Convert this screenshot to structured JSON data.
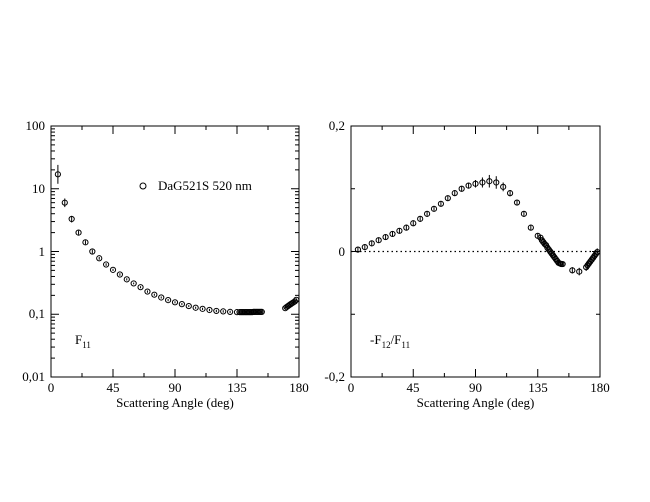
{
  "chart_data": [
    {
      "type": "scatter",
      "panel": "left",
      "xlabel": "Scattering Angle (deg)",
      "ylabel": "",
      "xlim": [
        0,
        180
      ],
      "ylim": [
        0.01,
        100
      ],
      "yscale": "log",
      "xticks": [
        "0",
        "45",
        "90",
        "135",
        "180"
      ],
      "yticks": [
        "0,01",
        "0,1",
        "1",
        "10",
        "100"
      ],
      "annotation": "F",
      "annotation_sub": "11",
      "legend": {
        "label": "DaG521S 520 nm",
        "placement": "top-right",
        "marker": "open-circle"
      },
      "series": [
        {
          "name": "DaG521S 520 nm",
          "x": [
            5,
            10,
            15,
            20,
            25,
            30,
            35,
            40,
            45,
            50,
            55,
            60,
            65,
            70,
            75,
            80,
            85,
            90,
            95,
            100,
            105,
            110,
            115,
            120,
            125,
            130,
            135,
            137,
            138,
            139,
            140,
            141,
            142,
            143,
            144,
            145,
            146,
            147,
            148,
            149,
            150,
            151,
            152,
            153,
            170,
            171,
            172,
            173,
            174,
            175,
            176,
            177,
            178
          ],
          "y": [
            17,
            6,
            3.3,
            2.0,
            1.4,
            1.0,
            0.78,
            0.62,
            0.51,
            0.43,
            0.36,
            0.31,
            0.27,
            0.23,
            0.205,
            0.185,
            0.168,
            0.155,
            0.145,
            0.135,
            0.127,
            0.122,
            0.117,
            0.113,
            0.111,
            0.109,
            0.108,
            0.108,
            0.108,
            0.108,
            0.108,
            0.108,
            0.108,
            0.108,
            0.108,
            0.108,
            0.108,
            0.109,
            0.109,
            0.109,
            0.109,
            0.109,
            0.109,
            0.109,
            0.125,
            0.13,
            0.135,
            0.14,
            0.145,
            0.15,
            0.155,
            0.16,
            0.17
          ],
          "yerr_hi": [
            24,
            7,
            3.7,
            2.15,
            1.5,
            1.07,
            0.82,
            0.65,
            0.53,
            0.45,
            0.375,
            0.32,
            0.28,
            0.24,
            0.213,
            0.192,
            0.175,
            0.161,
            0.151,
            0.14,
            0.132,
            0.127,
            0.122,
            0.118,
            0.116,
            0.114,
            0.113,
            0.113,
            0.113,
            0.113,
            0.113,
            0.113,
            0.113,
            0.113,
            0.113,
            0.113,
            0.113,
            0.114,
            0.114,
            0.114,
            0.114,
            0.114,
            0.114,
            0.114,
            0.13,
            0.136,
            0.142,
            0.147,
            0.152,
            0.158,
            0.163,
            0.168,
            0.18
          ],
          "yerr_lo": [
            12,
            5.1,
            2.9,
            1.85,
            1.3,
            0.93,
            0.74,
            0.59,
            0.49,
            0.41,
            0.345,
            0.3,
            0.26,
            0.22,
            0.197,
            0.178,
            0.161,
            0.149,
            0.139,
            0.13,
            0.122,
            0.117,
            0.112,
            0.108,
            0.106,
            0.104,
            0.103,
            0.103,
            0.103,
            0.103,
            0.103,
            0.103,
            0.103,
            0.103,
            0.103,
            0.103,
            0.103,
            0.104,
            0.104,
            0.104,
            0.104,
            0.104,
            0.104,
            0.104,
            0.12,
            0.124,
            0.128,
            0.133,
            0.138,
            0.142,
            0.147,
            0.152,
            0.16
          ]
        }
      ]
    },
    {
      "type": "scatter",
      "panel": "right",
      "xlabel": "Scattering Angle (deg)",
      "ylabel": "",
      "xlim": [
        0,
        180
      ],
      "ylim": [
        -0.2,
        0.2
      ],
      "yscale": "linear",
      "xticks": [
        "0",
        "45",
        "90",
        "135",
        "180"
      ],
      "yticks": [
        "-0,2",
        "0",
        "0,2"
      ],
      "annotation": "-F",
      "annotation_sub1": "12",
      "annotation_mid": "/F",
      "annotation_sub2": "11",
      "zero_line": "dotted",
      "series": [
        {
          "name": "",
          "x": [
            5,
            10,
            15,
            20,
            25,
            30,
            35,
            40,
            45,
            50,
            55,
            60,
            65,
            70,
            75,
            80,
            85,
            90,
            95,
            100,
            105,
            110,
            115,
            120,
            125,
            130,
            135,
            137,
            138,
            139,
            140,
            141,
            142,
            143,
            144,
            145,
            146,
            147,
            148,
            149,
            150,
            151,
            152,
            153,
            160,
            165,
            170,
            171,
            172,
            173,
            174,
            175,
            176,
            177,
            178
          ],
          "y": [
            0.003,
            0.007,
            0.013,
            0.018,
            0.023,
            0.028,
            0.033,
            0.038,
            0.045,
            0.052,
            0.06,
            0.068,
            0.076,
            0.085,
            0.093,
            0.1,
            0.105,
            0.108,
            0.11,
            0.112,
            0.11,
            0.103,
            0.093,
            0.078,
            0.06,
            0.038,
            0.025,
            0.022,
            0.018,
            0.015,
            0.012,
            0.01,
            0.006,
            0.003,
            0.0,
            -0.003,
            -0.006,
            -0.009,
            -0.012,
            -0.015,
            -0.018,
            -0.019,
            -0.02,
            -0.02,
            -0.03,
            -0.032,
            -0.025,
            -0.022,
            -0.019,
            -0.016,
            -0.013,
            -0.01,
            -0.007,
            -0.004,
            -0.001
          ],
          "yerr": [
            0.004,
            0.004,
            0.004,
            0.004,
            0.004,
            0.004,
            0.004,
            0.004,
            0.004,
            0.004,
            0.004,
            0.004,
            0.004,
            0.004,
            0.004,
            0.004,
            0.004,
            0.006,
            0.008,
            0.01,
            0.01,
            0.007,
            0.005,
            0.004,
            0.004,
            0.004,
            0.004,
            0.004,
            0.004,
            0.004,
            0.004,
            0.004,
            0.004,
            0.004,
            0.004,
            0.004,
            0.004,
            0.004,
            0.004,
            0.004,
            0.004,
            0.004,
            0.004,
            0.004,
            0.005,
            0.006,
            0.006,
            0.006,
            0.006,
            0.006,
            0.006,
            0.006,
            0.006,
            0.006,
            0.006
          ]
        }
      ]
    }
  ]
}
